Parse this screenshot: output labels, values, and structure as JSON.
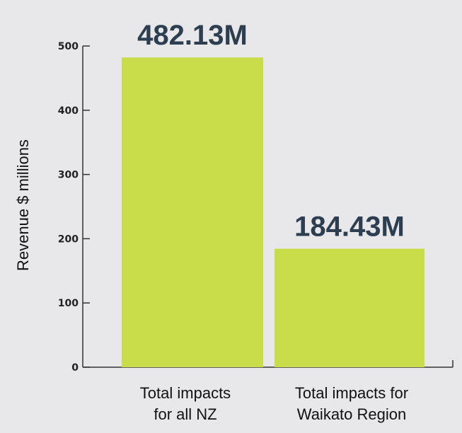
{
  "chart_data": {
    "type": "bar",
    "title": "",
    "xlabel": "",
    "ylabel": "Revenue $ millions",
    "ylim": [
      0,
      500
    ],
    "yticks": [
      0,
      100,
      200,
      300,
      400,
      500
    ],
    "categories": [
      [
        "Total impacts",
        "for all NZ"
      ],
      [
        "Total impacts for",
        "Waikato Region"
      ]
    ],
    "values": [
      482.13,
      184.43
    ],
    "value_labels": [
      "482.13M",
      "184.43M"
    ],
    "bar_color": "#c9dd4a",
    "axis_color": "#333333",
    "grid": false,
    "legend": "none"
  }
}
